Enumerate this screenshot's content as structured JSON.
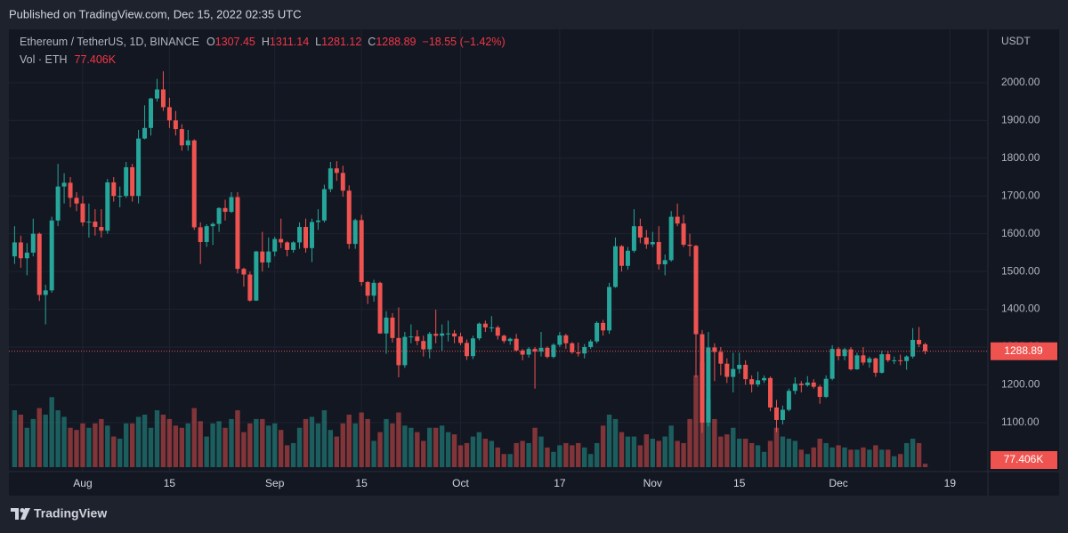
{
  "header": "Published on TradingView.com, Dec 15, 2022 02:35 UTC",
  "footer": "TradingView",
  "chart_data": {
    "type": "candlestick",
    "symbol": "Ethereum / TetherUS, 1D, BINANCE",
    "ohlc_letters": [
      "O",
      "H",
      "L",
      "C"
    ],
    "change": "−18.55 (−1.42%)",
    "volume_title": "Vol · ETH",
    "volume_last_label": "77.406K",
    "currency": "USDT",
    "up_color": "#26a69a",
    "down_color": "#ef5350",
    "grid": true,
    "x": [
      "2022-07-21",
      "2022-07-22",
      "2022-07-23",
      "2022-07-24",
      "2022-07-25",
      "2022-07-26",
      "2022-07-27",
      "2022-07-28",
      "2022-07-29",
      "2022-07-30",
      "2022-07-31",
      "2022-08-01",
      "2022-08-02",
      "2022-08-03",
      "2022-08-04",
      "2022-08-05",
      "2022-08-06",
      "2022-08-07",
      "2022-08-08",
      "2022-08-09",
      "2022-08-10",
      "2022-08-11",
      "2022-08-12",
      "2022-08-13",
      "2022-08-14",
      "2022-08-15",
      "2022-08-16",
      "2022-08-17",
      "2022-08-18",
      "2022-08-19",
      "2022-08-20",
      "2022-08-21",
      "2022-08-22",
      "2022-08-23",
      "2022-08-24",
      "2022-08-25",
      "2022-08-26",
      "2022-08-27",
      "2022-08-28",
      "2022-08-29",
      "2022-08-30",
      "2022-08-31",
      "2022-09-01",
      "2022-09-02",
      "2022-09-03",
      "2022-09-04",
      "2022-09-05",
      "2022-09-06",
      "2022-09-07",
      "2022-09-08",
      "2022-09-09",
      "2022-09-10",
      "2022-09-11",
      "2022-09-12",
      "2022-09-13",
      "2022-09-14",
      "2022-09-15",
      "2022-09-16",
      "2022-09-17",
      "2022-09-18",
      "2022-09-19",
      "2022-09-20",
      "2022-09-21",
      "2022-09-22",
      "2022-09-23",
      "2022-09-24",
      "2022-09-25",
      "2022-09-26",
      "2022-09-27",
      "2022-09-28",
      "2022-09-29",
      "2022-09-30",
      "2022-10-01",
      "2022-10-02",
      "2022-10-03",
      "2022-10-04",
      "2022-10-05",
      "2022-10-06",
      "2022-10-07",
      "2022-10-08",
      "2022-10-09",
      "2022-10-10",
      "2022-10-11",
      "2022-10-12",
      "2022-10-13",
      "2022-10-14",
      "2022-10-15",
      "2022-10-16",
      "2022-10-17",
      "2022-10-18",
      "2022-10-19",
      "2022-10-20",
      "2022-10-21",
      "2022-10-22",
      "2022-10-23",
      "2022-10-24",
      "2022-10-25",
      "2022-10-26",
      "2022-10-27",
      "2022-10-28",
      "2022-10-29",
      "2022-10-30",
      "2022-10-31",
      "2022-11-01",
      "2022-11-02",
      "2022-11-03",
      "2022-11-04",
      "2022-11-05",
      "2022-11-06",
      "2022-11-07",
      "2022-11-08",
      "2022-11-09",
      "2022-11-10",
      "2022-11-11",
      "2022-11-12",
      "2022-11-13",
      "2022-11-14",
      "2022-11-15",
      "2022-11-16",
      "2022-11-17",
      "2022-11-18",
      "2022-11-19",
      "2022-11-20",
      "2022-11-21",
      "2022-11-22",
      "2022-11-23",
      "2022-11-24",
      "2022-11-25",
      "2022-11-26",
      "2022-11-27",
      "2022-11-28",
      "2022-11-29",
      "2022-11-30",
      "2022-12-01",
      "2022-12-02",
      "2022-12-03",
      "2022-12-04",
      "2022-12-05",
      "2022-12-06",
      "2022-12-07",
      "2022-12-08",
      "2022-12-09",
      "2022-12-10",
      "2022-12-11",
      "2022-12-12",
      "2022-12-13",
      "2022-12-14",
      "2022-12-15"
    ],
    "open": [
      1540,
      1577,
      1535,
      1550,
      1600,
      1438,
      1450,
      1635,
      1725,
      1735,
      1695,
      1680,
      1630,
      1632,
      1618,
      1608,
      1736,
      1700,
      1700,
      1776,
      1700,
      1852,
      1880,
      1958,
      1982,
      1935,
      1900,
      1877,
      1834,
      1847,
      1617,
      1578,
      1620,
      1626,
      1668,
      1658,
      1697,
      1507,
      1492,
      1423,
      1553,
      1524,
      1553,
      1586,
      1577,
      1557,
      1577,
      1618,
      1562,
      1631,
      1635,
      1718,
      1773,
      1761,
      1714,
      1573,
      1636,
      1472,
      1436,
      1470,
      1336,
      1378,
      1324,
      1252,
      1327,
      1328,
      1316,
      1294,
      1335,
      1330,
      1336,
      1336,
      1328,
      1311,
      1276,
      1323,
      1362,
      1352,
      1352,
      1330,
      1316,
      1322,
      1291,
      1280,
      1295,
      1288,
      1298,
      1274,
      1306,
      1331,
      1310,
      1286,
      1283,
      1300,
      1315,
      1364,
      1344,
      1459,
      1567,
      1515,
      1555,
      1620,
      1590,
      1572,
      1578,
      1519,
      1530,
      1645,
      1627,
      1571,
      1568,
      1334,
      1100,
      1299,
      1287,
      1256,
      1221,
      1242,
      1253,
      1215,
      1201,
      1212,
      1218,
      1140,
      1107,
      1134,
      1184,
      1203,
      1199,
      1206,
      1195,
      1168,
      1216,
      1295,
      1276,
      1294,
      1241,
      1278,
      1259,
      1270,
      1232,
      1281,
      1265,
      1265,
      1263,
      1275,
      1319,
      1307.45
    ],
    "high": [
      1620,
      1595,
      1575,
      1640,
      1603,
      1465,
      1645,
      1785,
      1760,
      1750,
      1710,
      1700,
      1680,
      1665,
      1665,
      1745,
      1750,
      1725,
      1790,
      1785,
      1875,
      1940,
      1960,
      2010,
      2030,
      1960,
      1925,
      1890,
      1875,
      1850,
      1630,
      1625,
      1630,
      1670,
      1690,
      1710,
      1710,
      1510,
      1500,
      1555,
      1605,
      1590,
      1592,
      1640,
      1580,
      1580,
      1630,
      1640,
      1640,
      1665,
      1730,
      1790,
      1792,
      1780,
      1728,
      1640,
      1650,
      1475,
      1478,
      1473,
      1395,
      1390,
      1405,
      1340,
      1360,
      1345,
      1330,
      1340,
      1399,
      1360,
      1370,
      1345,
      1338,
      1320,
      1330,
      1365,
      1370,
      1382,
      1357,
      1333,
      1325,
      1335,
      1295,
      1300,
      1300,
      1340,
      1302,
      1310,
      1340,
      1335,
      1313,
      1312,
      1308,
      1320,
      1368,
      1372,
      1470,
      1590,
      1570,
      1565,
      1665,
      1640,
      1610,
      1605,
      1620,
      1545,
      1660,
      1680,
      1650,
      1600,
      1570,
      1345,
      1340,
      1310,
      1300,
      1270,
      1285,
      1285,
      1265,
      1225,
      1235,
      1225,
      1222,
      1160,
      1145,
      1190,
      1220,
      1210,
      1223,
      1215,
      1200,
      1225,
      1305,
      1300,
      1298,
      1300,
      1285,
      1300,
      1275,
      1272,
      1290,
      1290,
      1275,
      1280,
      1278,
      1350,
      1353,
      1311.14
    ],
    "low": [
      1520,
      1510,
      1490,
      1540,
      1422,
      1360,
      1444,
      1620,
      1680,
      1670,
      1660,
      1620,
      1590,
      1595,
      1590,
      1600,
      1685,
      1670,
      1695,
      1685,
      1680,
      1850,
      1860,
      1950,
      1925,
      1880,
      1860,
      1820,
      1820,
      1610,
      1520,
      1565,
      1570,
      1605,
      1635,
      1655,
      1495,
      1460,
      1420,
      1422,
      1500,
      1510,
      1540,
      1562,
      1540,
      1550,
      1560,
      1550,
      1525,
      1610,
      1630,
      1710,
      1740,
      1698,
      1560,
      1560,
      1462,
      1414,
      1420,
      1335,
      1282,
      1312,
      1220,
      1245,
      1310,
      1305,
      1275,
      1270,
      1310,
      1290,
      1315,
      1310,
      1305,
      1266,
      1268,
      1318,
      1340,
      1340,
      1320,
      1310,
      1306,
      1288,
      1265,
      1272,
      1190,
      1275,
      1270,
      1270,
      1300,
      1295,
      1282,
      1275,
      1270,
      1295,
      1310,
      1330,
      1335,
      1457,
      1500,
      1505,
      1550,
      1575,
      1560,
      1565,
      1505,
      1490,
      1526,
      1620,
      1565,
      1540,
      1220,
      1073,
      1090,
      1210,
      1225,
      1205,
      1180,
      1230,
      1200,
      1180,
      1195,
      1205,
      1130,
      1075,
      1095,
      1130,
      1175,
      1180,
      1195,
      1190,
      1150,
      1165,
      1212,
      1265,
      1265,
      1238,
      1240,
      1252,
      1245,
      1221,
      1230,
      1260,
      1255,
      1252,
      1240,
      1270,
      1300,
      1281.12
    ],
    "close": [
      1577,
      1535,
      1550,
      1600,
      1438,
      1450,
      1635,
      1725,
      1735,
      1695,
      1680,
      1630,
      1632,
      1618,
      1608,
      1736,
      1700,
      1700,
      1776,
      1700,
      1852,
      1880,
      1958,
      1982,
      1935,
      1900,
      1877,
      1834,
      1847,
      1617,
      1578,
      1620,
      1626,
      1668,
      1658,
      1697,
      1507,
      1492,
      1423,
      1553,
      1524,
      1553,
      1586,
      1577,
      1557,
      1577,
      1618,
      1562,
      1631,
      1635,
      1718,
      1773,
      1761,
      1714,
      1573,
      1636,
      1472,
      1436,
      1470,
      1336,
      1378,
      1324,
      1252,
      1327,
      1328,
      1316,
      1294,
      1335,
      1330,
      1336,
      1336,
      1328,
      1311,
      1276,
      1323,
      1362,
      1352,
      1352,
      1330,
      1316,
      1322,
      1291,
      1280,
      1295,
      1288,
      1298,
      1274,
      1306,
      1331,
      1310,
      1286,
      1283,
      1300,
      1315,
      1364,
      1344,
      1459,
      1567,
      1515,
      1555,
      1620,
      1590,
      1572,
      1578,
      1519,
      1530,
      1645,
      1627,
      1571,
      1568,
      1334,
      1100,
      1299,
      1287,
      1256,
      1221,
      1242,
      1253,
      1215,
      1201,
      1212,
      1218,
      1140,
      1107,
      1134,
      1184,
      1203,
      1199,
      1206,
      1195,
      1168,
      1216,
      1295,
      1276,
      1294,
      1241,
      1278,
      1259,
      1270,
      1232,
      1281,
      1265,
      1265,
      1263,
      1275,
      1319,
      1307.45,
      1288.89
    ],
    "volume": [
      1300000,
      1200000,
      900000,
      1100000,
      1350000,
      1200000,
      1600000,
      1300000,
      1150000,
      900000,
      850000,
      1000000,
      900000,
      1000000,
      1100000,
      950000,
      700000,
      650000,
      1000000,
      1000000,
      1150000,
      1200000,
      900000,
      1300000,
      1200000,
      1100000,
      950000,
      900000,
      1000000,
      1350000,
      1050000,
      700000,
      1000000,
      1050000,
      900000,
      1100000,
      1300000,
      800000,
      1000000,
      1100000,
      1100000,
      950000,
      1000000,
      850000,
      500000,
      550000,
      900000,
      1100000,
      1150000,
      1000000,
      1300000,
      850000,
      700000,
      1000000,
      1200000,
      1000000,
      1250000,
      1100000,
      600000,
      800000,
      1100000,
      1000000,
      1250000,
      950000,
      900000,
      800000,
      600000,
      900000,
      900000,
      950000,
      800000,
      750000,
      500000,
      550000,
      700000,
      800000,
      650000,
      600000,
      450000,
      300000,
      300000,
      550000,
      600000,
      550000,
      900000,
      700000,
      450000,
      350000,
      500000,
      550000,
      500000,
      550000,
      450000,
      300000,
      550000,
      950000,
      1200000,
      1100000,
      800000,
      700000,
      700000,
      500000,
      750000,
      650000,
      600000,
      700000,
      950000,
      600000,
      550000,
      1100000,
      2100000,
      2400000,
      1550000,
      1100000,
      700000,
      750000,
      900000,
      650000,
      650000,
      550000,
      500000,
      350000,
      600000,
      900000,
      700000,
      650000,
      600000,
      400000,
      300000,
      450000,
      650000,
      550000,
      450000,
      500000,
      450000,
      400000,
      400000,
      450000,
      400000,
      500000,
      400000,
      400000,
      250000,
      300000,
      550000,
      650000,
      550000,
      77406
    ],
    "ylim": [
      975,
      2141
    ],
    "yticks": [
      {
        "value": 1100,
        "label": "1100.00"
      },
      {
        "value": 1200,
        "label": "1200.00"
      },
      {
        "value": 1300,
        "label": "1300.00"
      },
      {
        "value": 1400,
        "label": "1400.00"
      },
      {
        "value": 1500,
        "label": "1500.00"
      },
      {
        "value": 1600,
        "label": "1600.00"
      },
      {
        "value": 1700,
        "label": "1700.00"
      },
      {
        "value": 1800,
        "label": "1800.00"
      },
      {
        "value": 1900,
        "label": "1900.00"
      },
      {
        "value": 2000,
        "label": "2000.00"
      }
    ],
    "xticks": [
      {
        "value": "2022-08-01",
        "label": "Aug"
      },
      {
        "value": "2022-08-15",
        "label": "15"
      },
      {
        "value": "2022-09-01",
        "label": "Sep"
      },
      {
        "value": "2022-09-15",
        "label": "15"
      },
      {
        "value": "2022-10-01",
        "label": "Oct"
      },
      {
        "value": "2022-10-17",
        "label": "17"
      },
      {
        "value": "2022-11-01",
        "label": "Nov"
      },
      {
        "value": "2022-11-15",
        "label": "15"
      },
      {
        "value": "2022-12-01",
        "label": "Dec"
      },
      {
        "value": "2022-12-19",
        "label": "19"
      }
    ]
  }
}
